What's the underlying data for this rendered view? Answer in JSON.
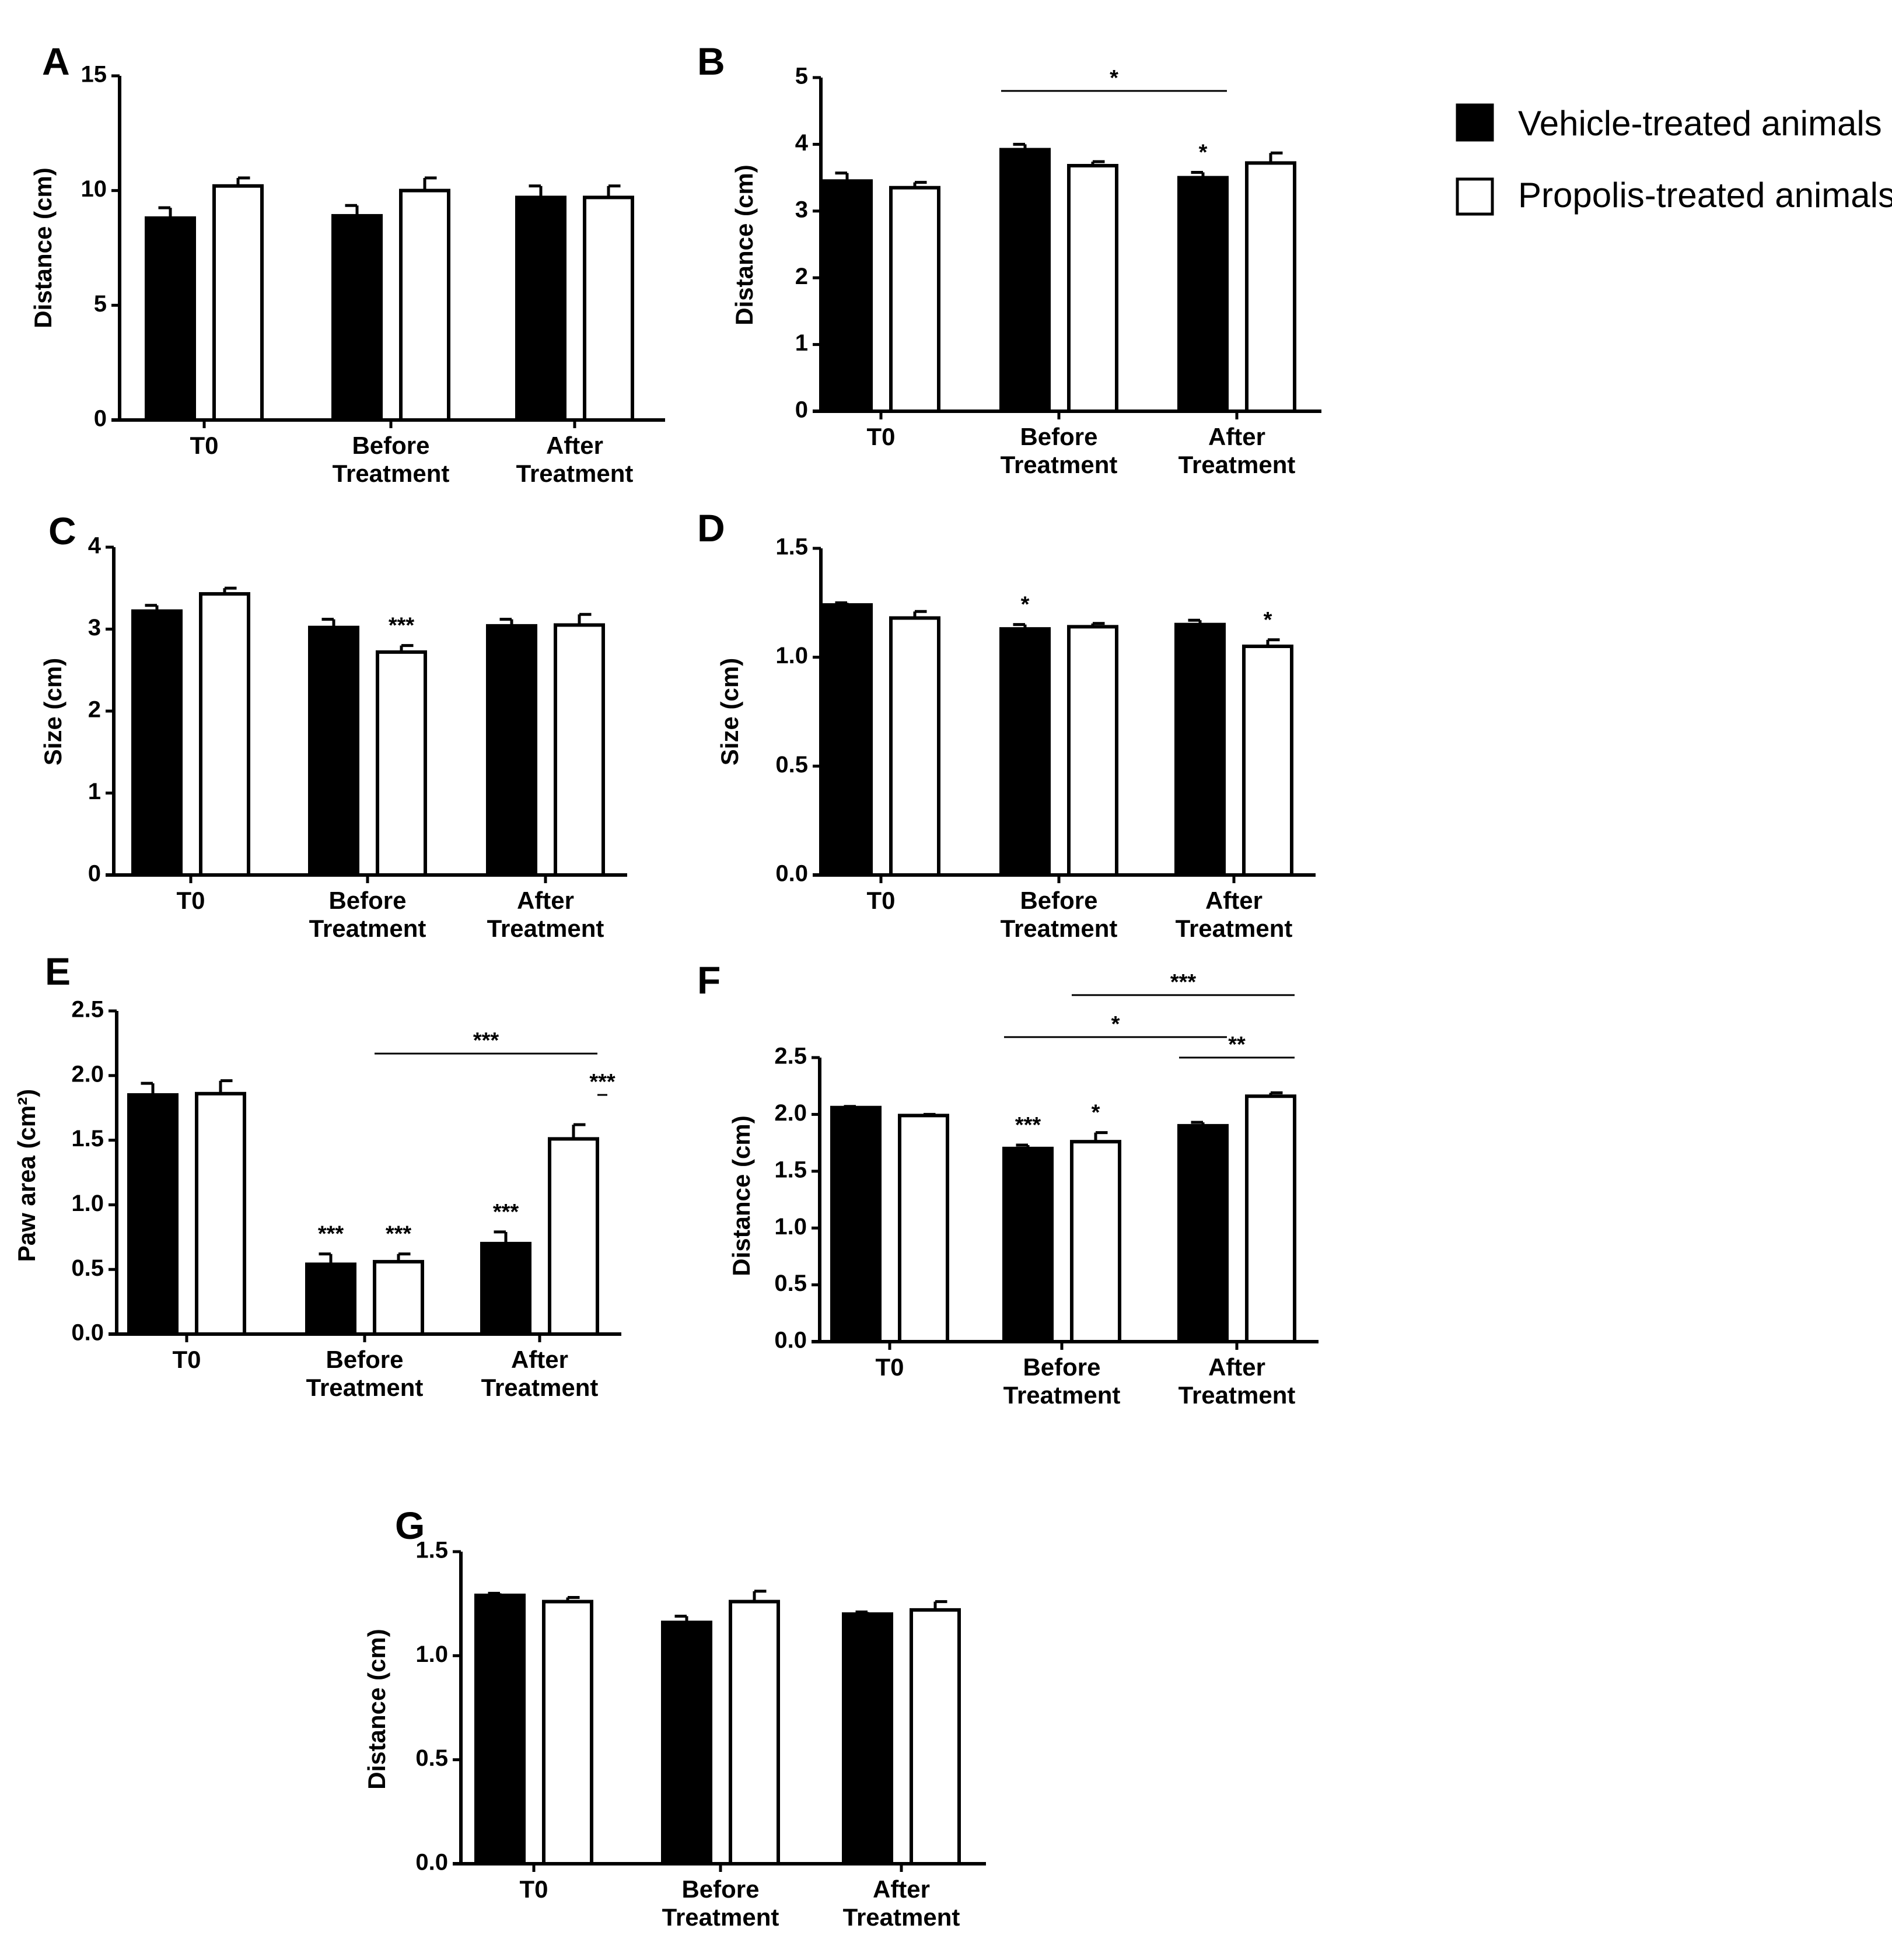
{
  "legend": {
    "items": [
      {
        "label": "Vehicle-treated animals",
        "fill": "#000000"
      },
      {
        "label": "Propolis-treated animals",
        "fill": "#ffffff"
      }
    ]
  },
  "colors": {
    "vehicle": "#000000",
    "propolis": "#ffffff",
    "stroke": "#000000"
  },
  "chart_data": [
    {
      "id": "A",
      "type": "bar",
      "title": "A",
      "ylabel": "Distance (cm)",
      "ylim": [
        0,
        15
      ],
      "yticks": [
        0,
        5,
        10,
        15
      ],
      "tick_labels": [
        "0",
        "5",
        "10",
        "15"
      ],
      "categories": [
        [
          "T0"
        ],
        [
          "Before",
          "Treatment"
        ],
        [
          "After",
          "Treatment"
        ]
      ],
      "series": [
        {
          "name": "Vehicle-treated animals",
          "values": [
            8.8,
            8.9,
            9.7
          ],
          "errors": [
            0.45,
            0.45,
            0.5
          ]
        },
        {
          "name": "Propolis-treated animals",
          "values": [
            10.2,
            10.0,
            9.7
          ],
          "errors": [
            0.35,
            0.55,
            0.5
          ]
        }
      ],
      "annotations": [],
      "brackets": []
    },
    {
      "id": "B",
      "type": "bar",
      "title": "B",
      "ylabel": "Distance (cm)",
      "ylim": [
        0,
        5
      ],
      "yticks": [
        0,
        1,
        2,
        3,
        4,
        5
      ],
      "tick_labels": [
        "0",
        "1",
        "2",
        "3",
        "4",
        "5"
      ],
      "categories": [
        [
          "T0"
        ],
        [
          "Before",
          "Treatment"
        ],
        [
          "After",
          "Treatment"
        ]
      ],
      "series": [
        {
          "name": "Vehicle-treated animals",
          "values": [
            3.45,
            3.92,
            3.5
          ],
          "errors": [
            0.12,
            0.08,
            0.08
          ]
        },
        {
          "name": "Propolis-treated animals",
          "values": [
            3.35,
            3.68,
            3.72
          ],
          "errors": [
            0.08,
            0.06,
            0.15
          ]
        }
      ],
      "annotations": [
        {
          "text": "*",
          "category": 2,
          "series": 0
        }
      ],
      "brackets": [
        {
          "from": [
            1,
            0
          ],
          "to": [
            2,
            0
          ],
          "level": 4.8,
          "text": "*"
        }
      ]
    },
    {
      "id": "C",
      "type": "bar",
      "title": "C",
      "ylabel": "Size (cm)",
      "ylim": [
        0,
        4
      ],
      "yticks": [
        0,
        1,
        2,
        3,
        4
      ],
      "tick_labels": [
        "0",
        "1",
        "2",
        "3",
        "4"
      ],
      "categories": [
        [
          "T0"
        ],
        [
          "Before",
          "Treatment"
        ],
        [
          "After",
          "Treatment"
        ]
      ],
      "series": [
        {
          "name": "Vehicle-treated animals",
          "values": [
            3.22,
            3.02,
            3.04
          ],
          "errors": [
            0.07,
            0.1,
            0.08
          ]
        },
        {
          "name": "Propolis-treated animals",
          "values": [
            3.43,
            2.72,
            3.05
          ],
          "errors": [
            0.07,
            0.08,
            0.13
          ]
        }
      ],
      "annotations": [
        {
          "text": "***",
          "category": 1,
          "series": 1
        }
      ],
      "brackets": []
    },
    {
      "id": "D",
      "type": "bar",
      "title": "D",
      "ylabel": "Size (cm)",
      "ylim": [
        0,
        1.5
      ],
      "yticks": [
        0,
        0.5,
        1.0,
        1.5
      ],
      "tick_labels": [
        "0.0",
        "0.5",
        "1.0",
        "1.5"
      ],
      "categories": [
        [
          "T0"
        ],
        [
          "Before",
          "Treatment"
        ],
        [
          "After",
          "Treatment"
        ]
      ],
      "series": [
        {
          "name": "Vehicle-treated animals",
          "values": [
            1.24,
            1.13,
            1.15
          ],
          "errors": [
            0.01,
            0.02,
            0.02
          ]
        },
        {
          "name": "Propolis-treated animals",
          "values": [
            1.18,
            1.14,
            1.05
          ],
          "errors": [
            0.03,
            0.015,
            0.03
          ]
        }
      ],
      "annotations": [
        {
          "text": "*",
          "category": 1,
          "series": 0
        },
        {
          "text": "*",
          "category": 2,
          "series": 1
        }
      ],
      "brackets": []
    },
    {
      "id": "E",
      "type": "bar",
      "title": "E",
      "ylabel": "Paw area (cm²)",
      "ylim": [
        0,
        2.5
      ],
      "yticks": [
        0,
        0.5,
        1.0,
        1.5,
        2.0,
        2.5
      ],
      "tick_labels": [
        "0.0",
        "0.5",
        "1.0",
        "1.5",
        "2.0",
        "2.5"
      ],
      "categories": [
        [
          "T0"
        ],
        [
          "Before",
          "Treatment"
        ],
        [
          "After",
          "Treatment"
        ]
      ],
      "series": [
        {
          "name": "Vehicle-treated animals",
          "values": [
            1.85,
            0.54,
            0.7
          ],
          "errors": [
            0.09,
            0.08,
            0.09
          ]
        },
        {
          "name": "Propolis-treated animals",
          "values": [
            1.86,
            0.56,
            1.51
          ],
          "errors": [
            0.1,
            0.06,
            0.11
          ]
        }
      ],
      "annotations": [
        {
          "text": "***",
          "category": 1,
          "series": 0
        },
        {
          "text": "***",
          "category": 1,
          "series": 1
        },
        {
          "text": "***",
          "category": 2,
          "series": 0
        }
      ],
      "brackets": [
        {
          "from": [
            1,
            1
          ],
          "to": [
            2,
            1
          ],
          "level": 2.17,
          "text": "***"
        },
        {
          "from": [
            2,
            0.5
          ],
          "to": [
            2,
            1
          ],
          "level": 1.85,
          "text": "***"
        }
      ]
    },
    {
      "id": "F",
      "type": "bar",
      "title": "F",
      "ylabel": "Distance (cm)",
      "ylim": [
        0,
        2.5
      ],
      "yticks": [
        0,
        0.5,
        1.0,
        1.5,
        2.0,
        2.5
      ],
      "tick_labels": [
        "0.0",
        "0.5",
        "1.0",
        "1.5",
        "2.0",
        "2.5"
      ],
      "categories": [
        [
          "T0"
        ],
        [
          "Before",
          "Treatment"
        ],
        [
          "After",
          "Treatment"
        ]
      ],
      "series": [
        {
          "name": "Vehicle-treated animals",
          "values": [
            2.06,
            1.7,
            1.9
          ],
          "errors": [
            0.01,
            0.03,
            0.03
          ]
        },
        {
          "name": "Propolis-treated animals",
          "values": [
            1.99,
            1.76,
            2.16
          ],
          "errors": [
            0.01,
            0.08,
            0.03
          ]
        }
      ],
      "annotations": [
        {
          "text": "***",
          "category": 1,
          "series": 0
        },
        {
          "text": "*",
          "category": 1,
          "series": 1
        }
      ],
      "brackets": [
        {
          "from": [
            1,
            1
          ],
          "to": [
            2,
            1
          ],
          "level": 3.05,
          "text": "***"
        },
        {
          "from": [
            1,
            0
          ],
          "to": [
            2,
            0
          ],
          "level": 2.68,
          "text": "*"
        },
        {
          "from": [
            2,
            0
          ],
          "to": [
            2,
            1
          ],
          "level": 2.5,
          "text": "**"
        }
      ]
    },
    {
      "id": "G",
      "type": "bar",
      "title": "G",
      "ylabel": "Distance (cm)",
      "ylim": [
        0,
        1.5
      ],
      "yticks": [
        0,
        0.5,
        1.0,
        1.5
      ],
      "tick_labels": [
        "0.0",
        "0.5",
        "1.0",
        "1.5"
      ],
      "categories": [
        [
          "T0"
        ],
        [
          "Before",
          "Treatment"
        ],
        [
          "After",
          "Treatment"
        ]
      ],
      "series": [
        {
          "name": "Vehicle-treated animals",
          "values": [
            1.29,
            1.16,
            1.2
          ],
          "errors": [
            0.01,
            0.03,
            0.01
          ]
        },
        {
          "name": "Propolis-treated animals",
          "values": [
            1.26,
            1.26,
            1.22
          ],
          "errors": [
            0.02,
            0.05,
            0.04
          ]
        }
      ],
      "annotations": [],
      "brackets": []
    }
  ]
}
